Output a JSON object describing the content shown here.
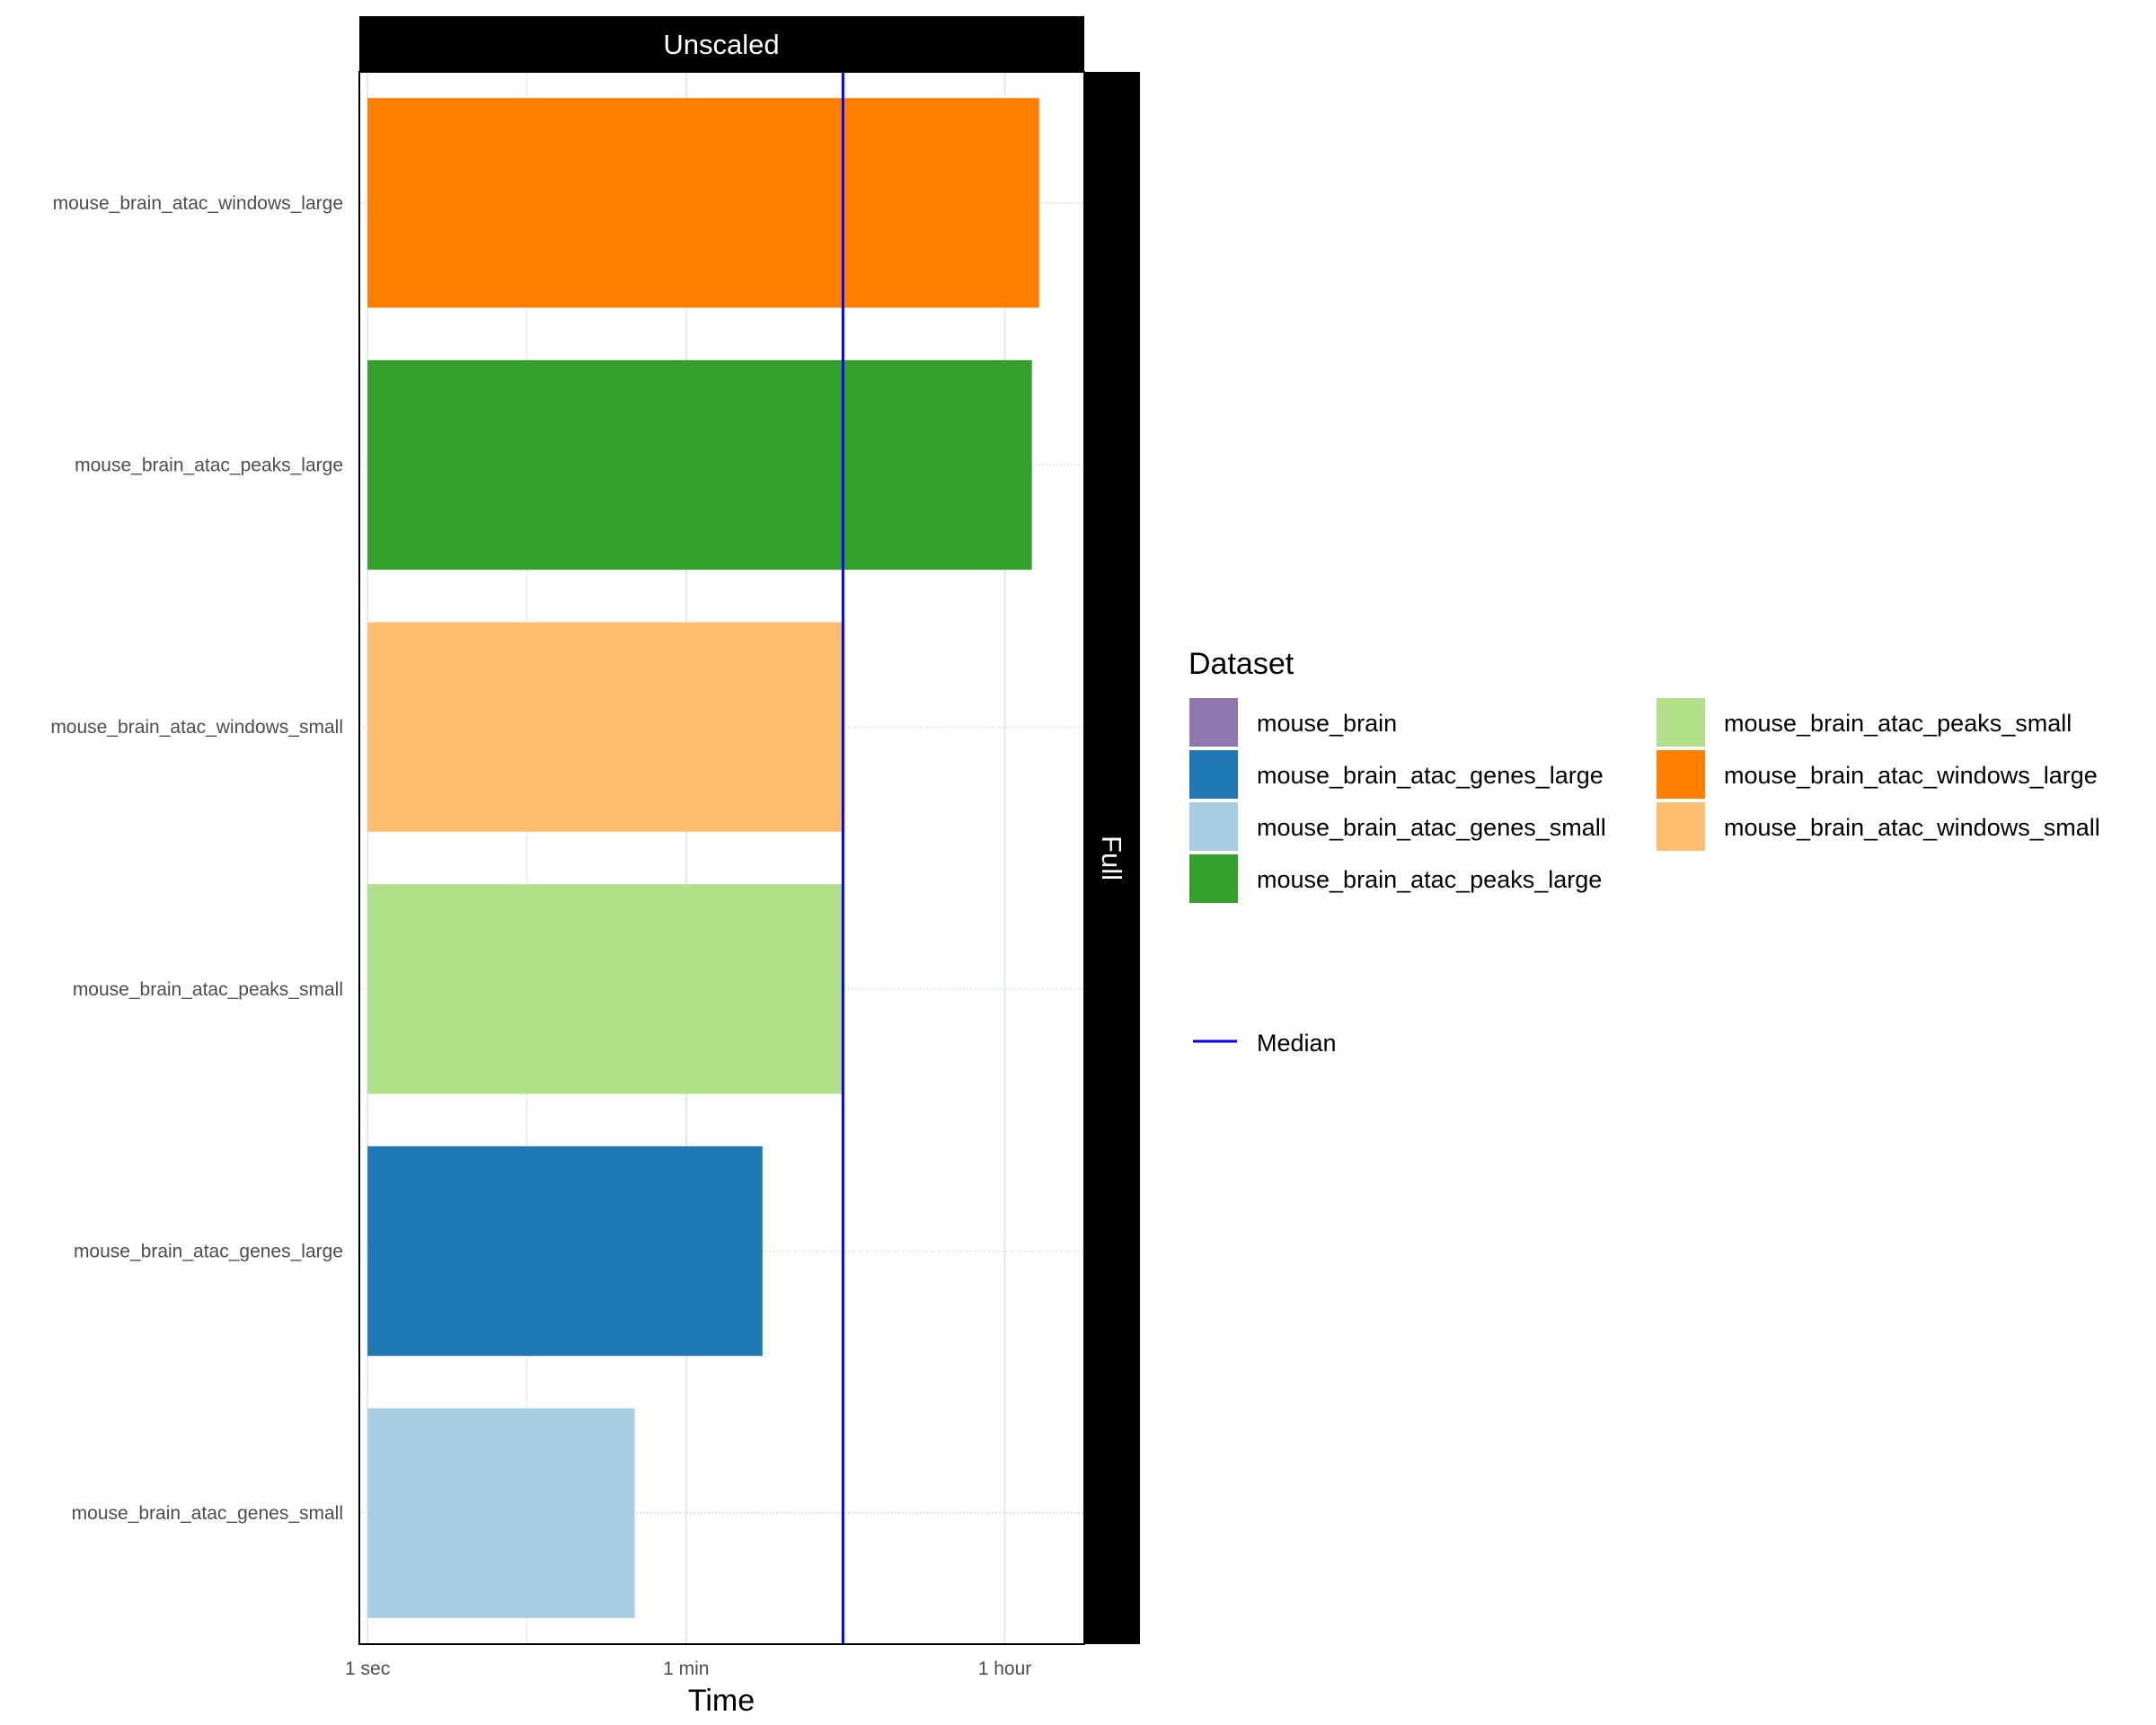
{
  "chart_data": {
    "type": "bar",
    "orientation": "horizontal",
    "facet_top_label": "Unscaled",
    "facet_right_label": "Full",
    "xlabel": "Time",
    "ylabel": "",
    "x_scale": "log10",
    "x_unit": "seconds",
    "xlim": [
      0.9,
      10000
    ],
    "x_ticks": [
      {
        "value": 1,
        "label": "1 sec"
      },
      {
        "value": 60,
        "label": "1 min"
      },
      {
        "value": 3600,
        "label": "1 hour"
      }
    ],
    "grid": true,
    "categories": [
      "mouse_brain_atac_windows_large",
      "mouse_brain_atac_peaks_large",
      "mouse_brain_atac_windows_small",
      "mouse_brain_atac_peaks_small",
      "mouse_brain_atac_genes_large",
      "mouse_brain_atac_genes_small"
    ],
    "values": [
      5600,
      5100,
      460,
      450,
      160,
      31
    ],
    "bar_colors": [
      "#ff7f00",
      "#33a02c",
      "#fdbf6f",
      "#b2df8a",
      "#1f78b4",
      "#a6cee3"
    ],
    "median": 450,
    "median_color": "#0000ff",
    "legend": {
      "title": "Dataset",
      "placement": "right",
      "entries": [
        {
          "label": "mouse_brain",
          "color": "#8f76ad"
        },
        {
          "label": "mouse_brain_atac_genes_large",
          "color": "#1f78b4"
        },
        {
          "label": "mouse_brain_atac_genes_small",
          "color": "#a6cee3"
        },
        {
          "label": "mouse_brain_atac_peaks_large",
          "color": "#33a02c"
        },
        {
          "label": "mouse_brain_atac_peaks_small",
          "color": "#b2df8a"
        },
        {
          "label": "mouse_brain_atac_windows_large",
          "color": "#ff7f00"
        },
        {
          "label": "mouse_brain_atac_windows_small",
          "color": "#fdbf6f"
        }
      ],
      "line_entry": {
        "label": "Median",
        "color": "#0000ff"
      }
    }
  }
}
